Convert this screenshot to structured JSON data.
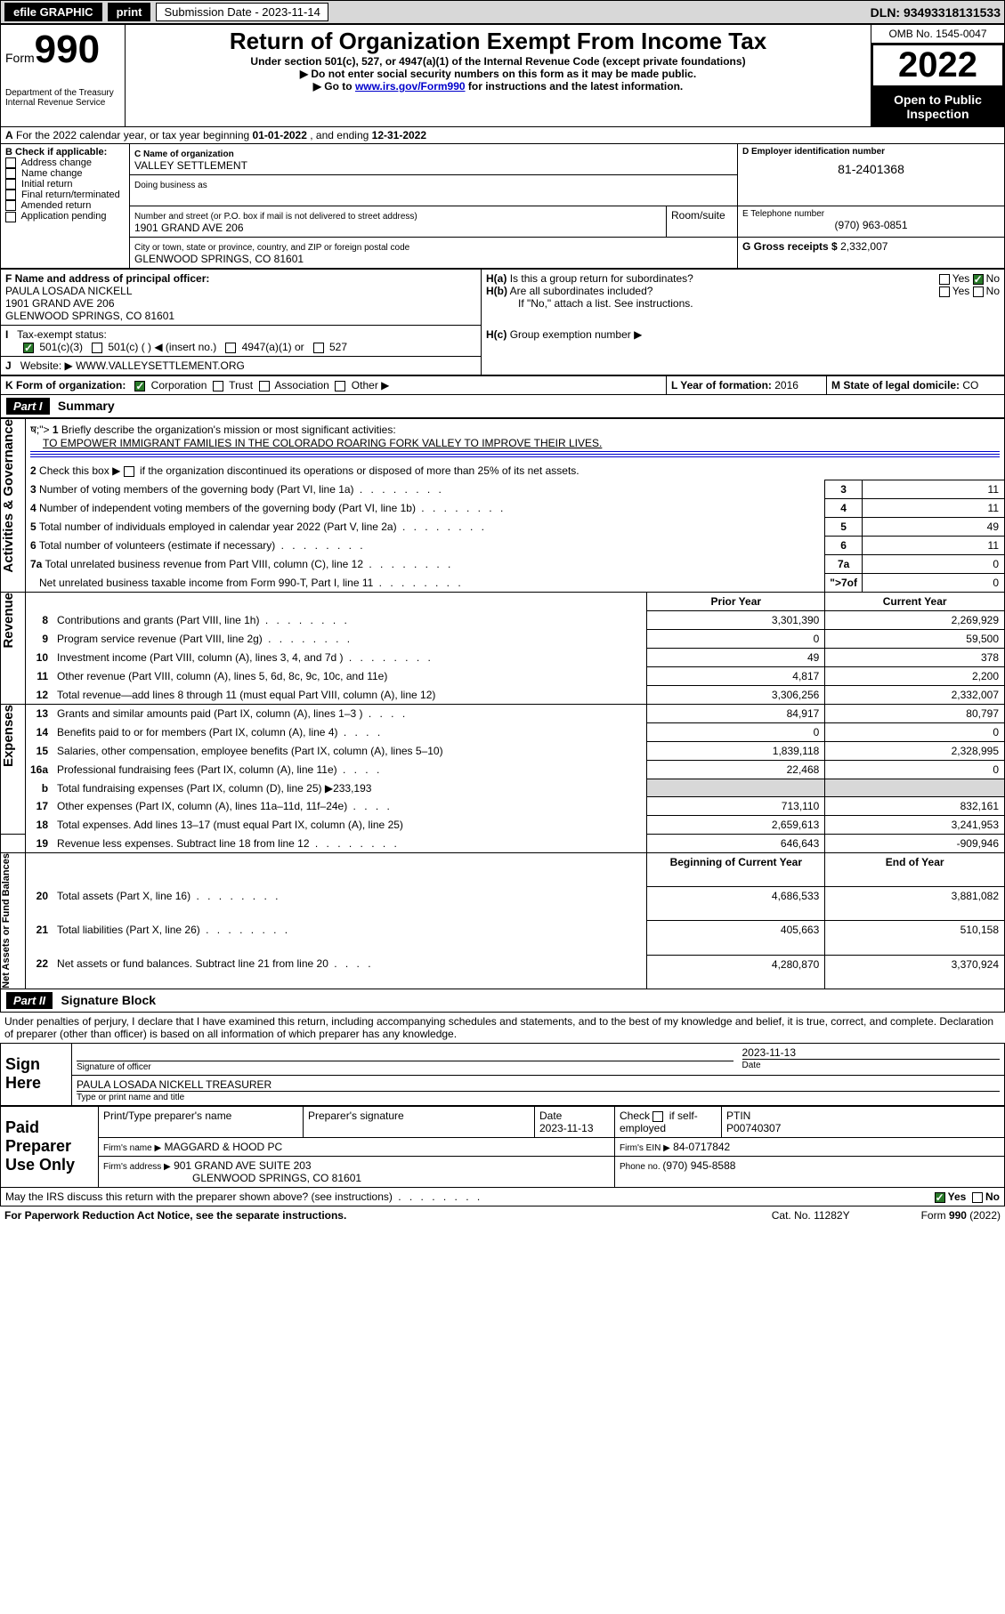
{
  "topbar": {
    "efile": "efile GRAPHIC",
    "print": "print",
    "sub_label": "Submission Date - 2023-11-14",
    "dln": "DLN: 93493318131533"
  },
  "header": {
    "form_prefix": "Form",
    "form_number": "990",
    "dept": "Department of the Treasury Internal Revenue Service",
    "title": "Return of Organization Exempt From Income Tax",
    "subtitle1": "Under section 501(c), 527, or 4947(a)(1) of the Internal Revenue Code (except private foundations)",
    "subtitle2": "▶ Do not enter social security numbers on this form as it may be made public.",
    "subtitle3_prefix": "▶ Go to ",
    "subtitle3_link": "www.irs.gov/Form990",
    "subtitle3_suffix": " for instructions and the latest information.",
    "omb": "OMB No. 1545-0047",
    "year": "2022",
    "open": "Open to Public Inspection"
  },
  "A": {
    "text": "For the 2022 calendar year, or tax year beginning ",
    "begin": "01-01-2022",
    "mid": " , and ending ",
    "end": "12-31-2022"
  },
  "B": {
    "label": "B Check if applicable:",
    "items": [
      "Address change",
      "Name change",
      "Initial return",
      "Final return/terminated",
      "Amended return",
      "Application pending"
    ]
  },
  "C": {
    "name_label": "C Name of organization",
    "name": "VALLEY SETTLEMENT",
    "dba_label": "Doing business as",
    "street_label": "Number and street (or P.O. box if mail is not delivered to street address)",
    "room_label": "Room/suite",
    "street": "1901 GRAND AVE 206",
    "city_label": "City or town, state or province, country, and ZIP or foreign postal code",
    "city": "GLENWOOD SPRINGS, CO  81601"
  },
  "D": {
    "label": "D Employer identification number",
    "value": "81-2401368"
  },
  "E": {
    "label": "E Telephone number",
    "value": "(970) 963-0851"
  },
  "G": {
    "label": "G Gross receipts $ ",
    "value": "2,332,007"
  },
  "F": {
    "label": "F Name and address of principal officer:",
    "name": "PAULA LOSADA NICKELL",
    "street": "1901 GRAND AVE 206",
    "city": "GLENWOOD SPRINGS, CO  81601"
  },
  "H": {
    "ha": "Is this a group return for subordinates?",
    "hb": "Are all subordinates included?",
    "hb_note": "If \"No,\" attach a list. See instructions.",
    "hc": "Group exemption number ▶"
  },
  "I": {
    "label": "Tax-exempt status:",
    "opts": [
      "501(c)(3)",
      "501(c) (   ) ◀ (insert no.)",
      "4947(a)(1) or",
      "527"
    ]
  },
  "J": {
    "label": "Website: ▶",
    "value": "WWW.VALLEYSETTLEMENT.ORG"
  },
  "K": {
    "label": "K Form of organization:",
    "opts": [
      "Corporation",
      "Trust",
      "Association",
      "Other ▶"
    ]
  },
  "L": {
    "label": "L Year of formation: ",
    "value": "2016"
  },
  "M": {
    "label": "M State of legal domicile: ",
    "value": "CO"
  },
  "part1": {
    "hdr": "Part I",
    "title": "Summary"
  },
  "sections": {
    "ag": "Activities & Governance",
    "rev": "Revenue",
    "exp": "Expenses",
    "nab": "Net Assets or Fund Balances"
  },
  "lines": {
    "l1": "Briefly describe the organization's mission or most significant activities:",
    "l1_val": "TO EMPOWER IMMIGRANT FAMILIES IN THE COLORADO ROARING FORK VALLEY TO IMPROVE THEIR LIVES.",
    "l2": "Check this box ▶",
    "l2_suffix": " if the organization discontinued its operations or disposed of more than 25% of its net assets.",
    "l3": "Number of voting members of the governing body (Part VI, line 1a)",
    "l4": "Number of independent voting members of the governing body (Part VI, line 1b)",
    "l5": "Total number of individuals employed in calendar year 2022 (Part V, line 2a)",
    "l6": "Total number of volunteers (estimate if necessary)",
    "l7a": "Total unrelated business revenue from Part VIII, column (C), line 12",
    "l7b": "Net unrelated business taxable income from Form 990-T, Part I, line 11",
    "prior": "Prior Year",
    "current": "Current Year",
    "l8": "Contributions and grants (Part VIII, line 1h)",
    "l9": "Program service revenue (Part VIII, line 2g)",
    "l10": "Investment income (Part VIII, column (A), lines 3, 4, and 7d )",
    "l11": "Other revenue (Part VIII, column (A), lines 5, 6d, 8c, 9c, 10c, and 11e)",
    "l12": "Total revenue—add lines 8 through 11 (must equal Part VIII, column (A), line 12)",
    "l13": "Grants and similar amounts paid (Part IX, column (A), lines 1–3 )",
    "l14": "Benefits paid to or for members (Part IX, column (A), line 4)",
    "l15": "Salaries, other compensation, employee benefits (Part IX, column (A), lines 5–10)",
    "l16a": "Professional fundraising fees (Part IX, column (A), line 11e)",
    "l16b": "Total fundraising expenses (Part IX, column (D), line 25) ▶233,193",
    "l17": "Other expenses (Part IX, column (A), lines 11a–11d, 11f–24e)",
    "l18": "Total expenses. Add lines 13–17 (must equal Part IX, column (A), line 25)",
    "l19": "Revenue less expenses. Subtract line 18 from line 12",
    "boy": "Beginning of Current Year",
    "eoy": "End of Year",
    "l20": "Total assets (Part X, line 16)",
    "l21": "Total liabilities (Part X, line 26)",
    "l22": "Net assets or fund balances. Subtract line 21 from line 20"
  },
  "values": {
    "l3": "11",
    "l4": "11",
    "l5": "49",
    "l6": "11",
    "l7a": "0",
    "l7b": "0",
    "l8p": "3,301,390",
    "l8c": "2,269,929",
    "l9p": "0",
    "l9c": "59,500",
    "l10p": "49",
    "l10c": "378",
    "l11p": "4,817",
    "l11c": "2,200",
    "l12p": "3,306,256",
    "l12c": "2,332,007",
    "l13p": "84,917",
    "l13c": "80,797",
    "l14p": "0",
    "l14c": "0",
    "l15p": "1,839,118",
    "l15c": "2,328,995",
    "l16ap": "22,468",
    "l16ac": "0",
    "l17p": "713,110",
    "l17c": "832,161",
    "l18p": "2,659,613",
    "l18c": "3,241,953",
    "l19p": "646,643",
    "l19c": "-909,946",
    "l20p": "4,686,533",
    "l20c": "3,881,082",
    "l21p": "405,663",
    "l21c": "510,158",
    "l22p": "4,280,870",
    "l22c": "3,370,924"
  },
  "part2": {
    "hdr": "Part II",
    "title": "Signature Block"
  },
  "sig": {
    "penalty": "Under penalties of perjury, I declare that I have examined this return, including accompanying schedules and statements, and to the best of my knowledge and belief, it is true, correct, and complete. Declaration of preparer (other than officer) is based on all information of which preparer has any knowledge.",
    "sign_here": "Sign Here",
    "date": "2023-11-13",
    "sig_of_officer": "Signature of officer",
    "date_label": "Date",
    "name_title": "PAULA LOSADA NICKELL  TREASURER",
    "type_label": "Type or print name and title",
    "paid": "Paid Preparer Use Only",
    "prep_name_label": "Print/Type preparer's name",
    "prep_sig_label": "Preparer's signature",
    "prep_date_label": "Date",
    "prep_date": "2023-11-13",
    "check_if": "Check",
    "self_emp": "if self-employed",
    "ptin_label": "PTIN",
    "ptin": "P00740307",
    "firm_name_label": "Firm's name    ▶",
    "firm_name": "MAGGARD & HOOD PC",
    "firm_ein_label": "Firm's EIN ▶",
    "firm_ein": "84-0717842",
    "firm_addr_label": "Firm's address ▶",
    "firm_addr1": "901 GRAND AVE SUITE 203",
    "firm_addr2": "GLENWOOD SPRINGS, CO  81601",
    "phone_label": "Phone no. ",
    "phone": "(970) 945-8588",
    "may_irs": "May the IRS discuss this return with the preparer shown above? (see instructions)"
  },
  "footer": {
    "left": "For Paperwork Reduction Act Notice, see the separate instructions.",
    "mid": "Cat. No. 11282Y",
    "right": "Form 990 (2022)"
  }
}
